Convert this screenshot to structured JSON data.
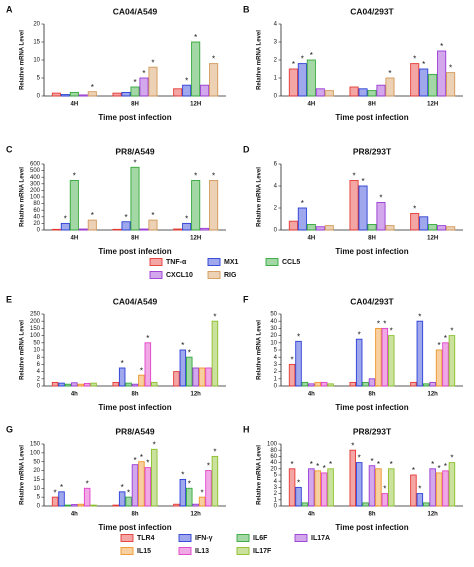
{
  "chart_data": [
    {
      "type": "bar",
      "label": "A",
      "title": "CA04/A549",
      "ylabel": "Relative mRNA Level",
      "xlabel": "Time post infection",
      "annotation": "*",
      "categories": [
        "4H",
        "8H",
        "12H"
      ],
      "ylim": [
        0,
        20
      ],
      "yticks": [
        0,
        5,
        10,
        15,
        20
      ],
      "series": [
        {
          "name": "TNF-α",
          "color": "#e53935",
          "values": [
            0.8,
            0.8,
            2.0
          ],
          "significant": [
            false,
            false,
            false
          ]
        },
        {
          "name": "MX1",
          "color": "#2b3fd6",
          "values": [
            0.4,
            1.0,
            3.0
          ],
          "significant": [
            false,
            false,
            true
          ]
        },
        {
          "name": "CCL5",
          "color": "#34a83a",
          "values": [
            1.0,
            2.5,
            15.0
          ],
          "significant": [
            false,
            true,
            true
          ]
        },
        {
          "name": "CXCL10",
          "color": "#9b3bd4",
          "values": [
            0.3,
            5.0,
            3.0
          ],
          "significant": [
            false,
            true,
            false
          ]
        },
        {
          "name": "RIG",
          "color": "#d49a5a",
          "values": [
            1.2,
            8.0,
            9.0
          ],
          "significant": [
            true,
            true,
            true
          ]
        }
      ]
    },
    {
      "type": "bar",
      "label": "B",
      "title": "CA04/293T",
      "ylabel": "Relative mRNA Level",
      "xlabel": "Time post infection",
      "annotation": "*",
      "categories": [
        "4H",
        "8H",
        "12H"
      ],
      "ylim": [
        0,
        4
      ],
      "yticks": [
        0,
        1,
        2,
        3,
        4
      ],
      "series": [
        {
          "name": "TNF-α",
          "color": "#e53935",
          "values": [
            1.5,
            0.5,
            1.8
          ],
          "significant": [
            true,
            false,
            true
          ]
        },
        {
          "name": "MX1",
          "color": "#2b3fd6",
          "values": [
            1.8,
            0.4,
            1.5
          ],
          "significant": [
            true,
            false,
            true
          ]
        },
        {
          "name": "CCL5",
          "color": "#34a83a",
          "values": [
            2.0,
            0.3,
            1.2
          ],
          "significant": [
            true,
            false,
            false
          ]
        },
        {
          "name": "CXCL10",
          "color": "#9b3bd4",
          "values": [
            0.4,
            0.6,
            2.5
          ],
          "significant": [
            false,
            false,
            true
          ]
        },
        {
          "name": "RIG",
          "color": "#d49a5a",
          "values": [
            0.3,
            1.0,
            1.3
          ],
          "significant": [
            false,
            true,
            true
          ]
        }
      ]
    },
    {
      "type": "bar",
      "label": "C",
      "title": "PR8/A549",
      "ylabel": "Relative mRNA Level",
      "xlabel": "Time post infection",
      "annotation": "*",
      "legend": "bottom",
      "categories": [
        "4H",
        "8H",
        "12H"
      ],
      "ylim": [
        0,
        600
      ],
      "yticks": [
        0,
        20,
        40,
        60,
        80,
        100,
        200,
        300,
        400,
        500,
        600
      ],
      "series": [
        {
          "name": "TNF-α",
          "color": "#e53935",
          "values": [
            2,
            2,
            3
          ],
          "significant": [
            false,
            false,
            false
          ]
        },
        {
          "name": "MX1",
          "color": "#2b3fd6",
          "values": [
            20,
            25,
            20
          ],
          "significant": [
            true,
            true,
            true
          ]
        },
        {
          "name": "CCL5",
          "color": "#34a83a",
          "values": [
            350,
            550,
            350
          ],
          "significant": [
            true,
            true,
            true
          ]
        },
        {
          "name": "CXCL10",
          "color": "#9b3bd4",
          "values": [
            3,
            3,
            5
          ],
          "significant": [
            false,
            false,
            false
          ]
        },
        {
          "name": "RIG",
          "color": "#d49a5a",
          "values": [
            30,
            30,
            350
          ],
          "significant": [
            true,
            true,
            true
          ]
        }
      ]
    },
    {
      "type": "bar",
      "label": "D",
      "title": "PR8/293T",
      "ylabel": "Relative mRNA Level",
      "xlabel": "Time post infection",
      "annotation": "*",
      "categories": [
        "4H",
        "8H",
        "12H"
      ],
      "ylim": [
        0,
        6
      ],
      "yticks": [
        0,
        2,
        4,
        6
      ],
      "series": [
        {
          "name": "TNF-α",
          "color": "#e53935",
          "values": [
            0.8,
            4.5,
            1.5
          ],
          "significant": [
            false,
            true,
            true
          ]
        },
        {
          "name": "MX1",
          "color": "#2b3fd6",
          "values": [
            2.0,
            4.0,
            1.2
          ],
          "significant": [
            true,
            true,
            false
          ]
        },
        {
          "name": "CCL5",
          "color": "#34a83a",
          "values": [
            0.5,
            0.5,
            0.5
          ],
          "significant": [
            false,
            false,
            false
          ]
        },
        {
          "name": "CXCL10",
          "color": "#9b3bd4",
          "values": [
            0.3,
            2.5,
            0.4
          ],
          "significant": [
            false,
            true,
            false
          ]
        },
        {
          "name": "RIG",
          "color": "#d49a5a",
          "values": [
            0.4,
            0.4,
            0.3
          ],
          "significant": [
            false,
            false,
            false
          ]
        }
      ]
    },
    {
      "type": "bar",
      "label": "E",
      "title": "CA04/A549",
      "ylabel": "Relative mRNA Level",
      "xlabel": "Time post infection",
      "annotation": "*",
      "categories": [
        "4h",
        "8h",
        "12h"
      ],
      "ylim": [
        0,
        250
      ],
      "yticks": [
        0,
        2,
        4,
        6,
        8,
        10,
        50,
        100,
        150,
        200,
        250
      ],
      "series": [
        {
          "name": "TLR4",
          "color": "#e53935",
          "values": [
            1.0,
            1.0,
            4.0
          ],
          "significant": [
            false,
            false,
            false
          ]
        },
        {
          "name": "IFN-γ",
          "color": "#2b3fd6",
          "values": [
            0.8,
            5.0,
            10.0
          ],
          "significant": [
            false,
            true,
            true
          ]
        },
        {
          "name": "IL6F",
          "color": "#34a83a",
          "values": [
            0.5,
            0.8,
            8.0
          ],
          "significant": [
            false,
            false,
            true
          ]
        },
        {
          "name": "IL17A",
          "color": "#9b3bd4",
          "values": [
            0.9,
            0.5,
            5.0
          ],
          "significant": [
            false,
            false,
            false
          ]
        },
        {
          "name": "IL15",
          "color": "#f0962a",
          "values": [
            0.5,
            3.0,
            5.0
          ],
          "significant": [
            false,
            true,
            false
          ]
        },
        {
          "name": "IL13",
          "color": "#e040c8",
          "values": [
            0.7,
            50,
            5.0
          ],
          "significant": [
            false,
            true,
            false
          ]
        },
        {
          "name": "IL17F",
          "color": "#8bbf2a",
          "values": [
            0.8,
            1.0,
            200
          ],
          "significant": [
            false,
            false,
            true
          ]
        }
      ]
    },
    {
      "type": "bar",
      "label": "F",
      "title": "CA04/293T",
      "ylabel": "Relative mRNA Level",
      "xlabel": "Time post infection",
      "annotation": "*",
      "categories": [
        "4h",
        "8h",
        "12h"
      ],
      "ylim": [
        0,
        50
      ],
      "yticks": [
        0,
        1,
        2,
        3,
        4,
        5,
        10,
        20,
        30,
        40,
        50
      ],
      "series": [
        {
          "name": "TLR4",
          "color": "#e53935",
          "values": [
            3.0,
            0.5,
            0.5
          ],
          "significant": [
            true,
            false,
            false
          ]
        },
        {
          "name": "IFN-γ",
          "color": "#2b3fd6",
          "values": [
            12,
            15,
            40
          ],
          "significant": [
            true,
            true,
            true
          ]
        },
        {
          "name": "IL6F",
          "color": "#34a83a",
          "values": [
            0.5,
            0.5,
            0.3
          ],
          "significant": [
            false,
            false,
            false
          ]
        },
        {
          "name": "IL17A",
          "color": "#9b3bd4",
          "values": [
            0.3,
            1.0,
            0.5
          ],
          "significant": [
            false,
            false,
            false
          ]
        },
        {
          "name": "IL15",
          "color": "#f0962a",
          "values": [
            0.5,
            30,
            5.0
          ],
          "significant": [
            false,
            true,
            true
          ]
        },
        {
          "name": "IL13",
          "color": "#e040c8",
          "values": [
            0.5,
            30,
            10
          ],
          "significant": [
            false,
            true,
            true
          ]
        },
        {
          "name": "IL17F",
          "color": "#8bbf2a",
          "values": [
            0.3,
            20,
            20
          ],
          "significant": [
            false,
            true,
            true
          ]
        }
      ]
    },
    {
      "type": "bar",
      "label": "G",
      "title": "PR8/A549",
      "ylabel": "Relative mRNA Level",
      "xlabel": "Time post infection",
      "annotation": "*",
      "legend": "bottom",
      "categories": [
        "4h",
        "8h",
        "12h"
      ],
      "ylim": [
        0,
        150
      ],
      "yticks": [
        0,
        5,
        10,
        15,
        20,
        50,
        100,
        150
      ],
      "series": [
        {
          "name": "TLR4",
          "color": "#e53935",
          "values": [
            5,
            0.5,
            1
          ],
          "significant": [
            true,
            false,
            false
          ]
        },
        {
          "name": "IFN-γ",
          "color": "#2b3fd6",
          "values": [
            8,
            8,
            15
          ],
          "significant": [
            true,
            true,
            true
          ]
        },
        {
          "name": "IL6F",
          "color": "#34a83a",
          "values": [
            0.5,
            5,
            10
          ],
          "significant": [
            false,
            true,
            true
          ]
        },
        {
          "name": "IL17A",
          "color": "#9b3bd4",
          "values": [
            0.8,
            40,
            1
          ],
          "significant": [
            false,
            true,
            false
          ]
        },
        {
          "name": "IL15",
          "color": "#f0962a",
          "values": [
            1,
            50,
            5
          ],
          "significant": [
            false,
            true,
            true
          ]
        },
        {
          "name": "IL13",
          "color": "#e040c8",
          "values": [
            10,
            30,
            20
          ],
          "significant": [
            true,
            true,
            true
          ]
        },
        {
          "name": "IL17F",
          "color": "#8bbf2a",
          "values": [
            0.5,
            120,
            80
          ],
          "significant": [
            false,
            true,
            true
          ]
        }
      ]
    },
    {
      "type": "bar",
      "label": "H",
      "title": "PR8/293T",
      "ylabel": "Relative mRNA Level",
      "xlabel": "Time post infection",
      "annotation": "*",
      "categories": [
        "4h",
        "8h",
        "12h"
      ],
      "ylim": [
        0,
        100
      ],
      "yticks": [
        0,
        1,
        2,
        3,
        4,
        5,
        20,
        40,
        60,
        80,
        100
      ],
      "series": [
        {
          "name": "TLR4",
          "color": "#e53935",
          "values": [
            20,
            80,
            5
          ],
          "significant": [
            true,
            true,
            true
          ]
        },
        {
          "name": "IFN-γ",
          "color": "#2b3fd6",
          "values": [
            3,
            40,
            2
          ],
          "significant": [
            true,
            true,
            true
          ]
        },
        {
          "name": "IL6F",
          "color": "#34a83a",
          "values": [
            0.5,
            0.5,
            0.5
          ],
          "significant": [
            false,
            false,
            false
          ]
        },
        {
          "name": "IL17A",
          "color": "#9b3bd4",
          "values": [
            20,
            30,
            20
          ],
          "significant": [
            true,
            true,
            true
          ]
        },
        {
          "name": "IL15",
          "color": "#f0962a",
          "values": [
            15,
            20,
            10
          ],
          "significant": [
            true,
            true,
            true
          ]
        },
        {
          "name": "IL13",
          "color": "#e040c8",
          "values": [
            10,
            2,
            15
          ],
          "significant": [
            true,
            true,
            true
          ]
        },
        {
          "name": "IL17F",
          "color": "#8bbf2a",
          "values": [
            20,
            20,
            40
          ],
          "significant": [
            true,
            true,
            true
          ]
        }
      ]
    }
  ]
}
